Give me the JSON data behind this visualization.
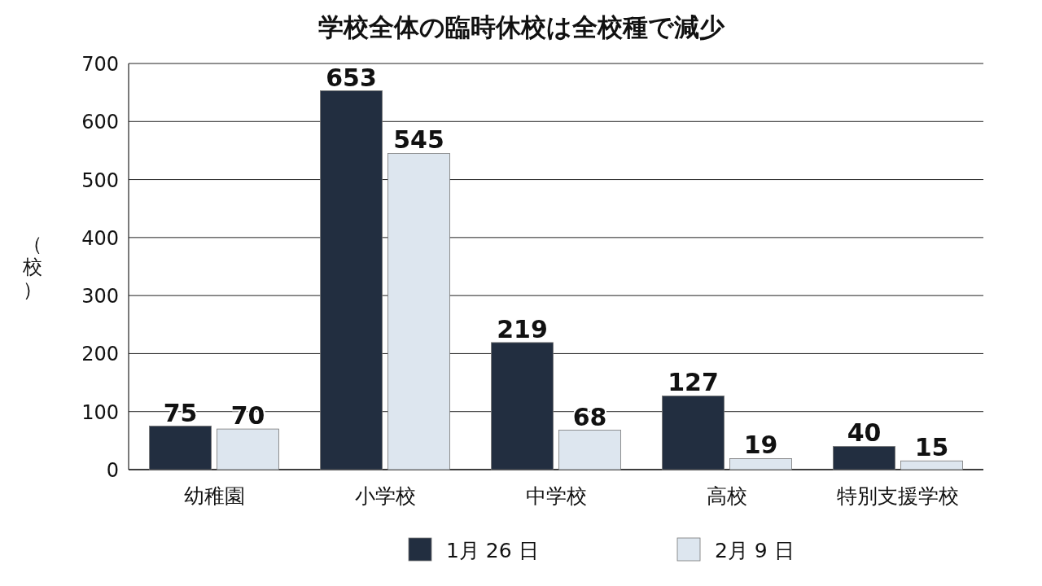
{
  "chart_data": {
    "type": "bar",
    "title": "学校全体の臨時休校は全校種で減少",
    "ylabel": "（校）",
    "categories": [
      "幼稚園",
      "小学校",
      "中学校",
      "高校",
      "特別支援学校"
    ],
    "series": [
      {
        "name": "1月 26 日",
        "color": "#222e40",
        "values": [
          75,
          653,
          219,
          127,
          40
        ]
      },
      {
        "name": "2月 9 日",
        "color": "#dde6ef",
        "values": [
          70,
          545,
          68,
          19,
          15
        ]
      }
    ],
    "ylim": [
      0,
      700
    ],
    "yticks": [
      0,
      100,
      200,
      300,
      400,
      500,
      600,
      700
    ],
    "grid": "y",
    "legend": "bottom",
    "data_labels": true
  }
}
